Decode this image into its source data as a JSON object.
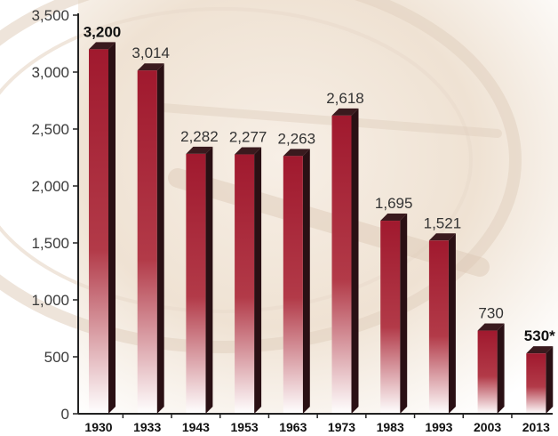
{
  "chart_data": {
    "type": "bar",
    "categories": [
      "1930",
      "1933",
      "1943",
      "1953",
      "1963",
      "1973",
      "1983",
      "1993",
      "2003",
      "2013"
    ],
    "values": [
      3200,
      3014,
      2282,
      2277,
      2263,
      2618,
      1695,
      1521,
      730,
      530
    ],
    "data_labels": [
      "3,200",
      "3,014",
      "2,282",
      "2,277",
      "2,263",
      "2,618",
      "1,695",
      "1,521",
      "730",
      "530*"
    ],
    "bold_labels": [
      true,
      false,
      false,
      false,
      false,
      false,
      false,
      false,
      false,
      true
    ],
    "ylim": [
      0,
      3500
    ],
    "yticks": [
      0,
      500,
      1000,
      1500,
      2000,
      2500,
      3000,
      3500
    ],
    "ytick_labels": [
      "0",
      "500",
      "1,000",
      "1,500",
      "2,000",
      "2,500",
      "3,000",
      "3,500"
    ],
    "title": "",
    "xlabel": "",
    "ylabel": "",
    "grid": false,
    "legend": "none",
    "colors": {
      "bar_top": "#a0192e",
      "bar_bottom": "#ffffff",
      "bar_side": "#2a1014",
      "bar_cap": "#3a1a1e",
      "axis": "#222222",
      "background": "#f3e9dd"
    }
  }
}
